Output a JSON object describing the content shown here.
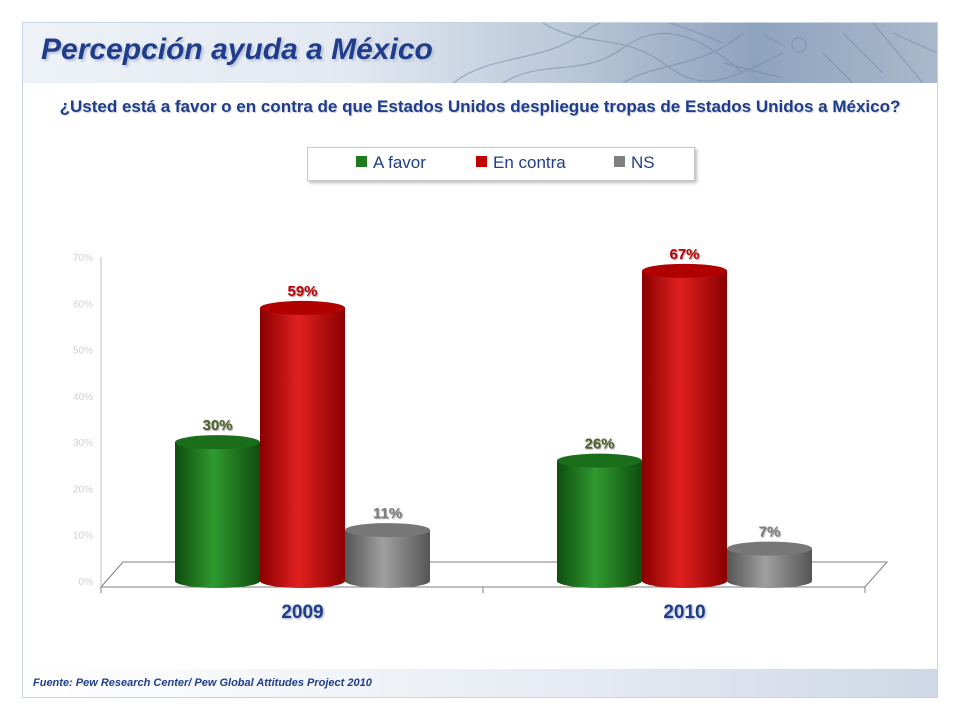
{
  "header": {
    "title": "Percepción ayuda a México"
  },
  "question": "¿Usted está a favor o en contra de que Estados Unidos despliegue tropas de Estados Unidos a México?",
  "footer": {
    "source": "Fuente: Pew Research Center/ Pew Global Attitudes Project 2010"
  },
  "colors": {
    "a_favor": "#1e7a1e",
    "en_contra": "#c00000",
    "ns": "#808080",
    "text": "#1f3d8a"
  },
  "chart_data": {
    "type": "bar",
    "categories": [
      "2009",
      "2010"
    ],
    "series": [
      {
        "name": "A favor",
        "values": [
          30,
          26
        ],
        "labels": [
          "30%",
          "26%"
        ],
        "label_color": "#4f6228"
      },
      {
        "name": "En contra",
        "values": [
          59,
          67
        ],
        "labels": [
          "59%",
          "67%"
        ],
        "label_color": "#c00000"
      },
      {
        "name": "NS",
        "values": [
          11,
          7
        ],
        "labels": [
          "11%",
          "7%"
        ],
        "label_color": "#7f7f7f"
      }
    ],
    "yticks": [
      "0%",
      "10%",
      "20%",
      "30%",
      "40%",
      "50%",
      "60%",
      "70%"
    ],
    "ylim": [
      0,
      70
    ],
    "legend_position": "top",
    "style": "3d-cylinder"
  }
}
